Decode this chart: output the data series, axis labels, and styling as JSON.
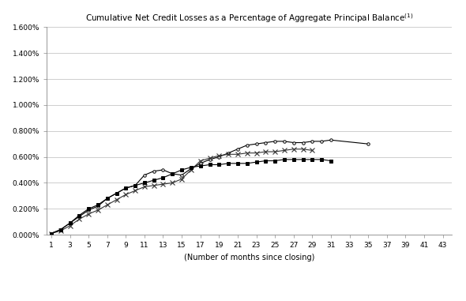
{
  "title_text": "Cumulative Net Credit Losses as a Percentage of Aggregate Principal Balance(1)",
  "xlabel": "(Number of months since closing)",
  "xlim": [
    0.5,
    44
  ],
  "ylim": [
    0.0,
    0.016
  ],
  "xticks": [
    1,
    3,
    5,
    7,
    9,
    11,
    13,
    15,
    17,
    19,
    21,
    23,
    25,
    27,
    29,
    31,
    33,
    35,
    37,
    39,
    41,
    43
  ],
  "yticks": [
    0.0,
    0.002,
    0.004,
    0.006,
    0.008,
    0.01,
    0.012,
    0.014,
    0.016
  ],
  "ytick_labels": [
    "0.000%",
    "0.200%",
    "0.400%",
    "0.600%",
    "0.800%",
    "1.000%",
    "1.200%",
    "1.400%",
    "1.600%"
  ],
  "series_A": {
    "x": [
      1,
      2,
      3,
      4,
      5,
      6,
      7,
      8,
      9,
      10,
      11,
      12,
      13,
      14,
      15,
      16,
      17,
      18,
      19,
      20,
      21,
      22,
      23,
      24,
      25,
      26,
      27,
      28,
      29,
      30,
      31,
      35
    ],
    "y": [
      0.0001,
      0.0004,
      0.0009,
      0.0014,
      0.0019,
      0.0022,
      0.0028,
      0.0032,
      0.0036,
      0.0038,
      0.0046,
      0.0049,
      0.005,
      0.0047,
      0.0046,
      0.0051,
      0.0055,
      0.0058,
      0.006,
      0.0063,
      0.0066,
      0.0069,
      0.007,
      0.0071,
      0.0072,
      0.0072,
      0.0071,
      0.0071,
      0.0072,
      0.0072,
      0.0073,
      0.007
    ],
    "color": "#000000",
    "marker": "o",
    "markersize": 2.5,
    "linewidth": 0.8
  },
  "series_B": {
    "x": [
      1,
      2,
      3,
      4,
      5,
      6,
      7,
      8,
      9,
      10,
      11,
      12,
      13,
      14,
      15,
      16,
      17,
      18,
      19,
      20,
      21,
      22,
      23,
      24,
      25,
      26,
      27,
      28,
      29
    ],
    "y": [
      0.0001,
      0.0003,
      0.0007,
      0.0012,
      0.0016,
      0.0019,
      0.0023,
      0.0027,
      0.0031,
      0.0034,
      0.0037,
      0.0038,
      0.0039,
      0.004,
      0.0043,
      0.005,
      0.0057,
      0.0059,
      0.0061,
      0.0062,
      0.0062,
      0.0063,
      0.0063,
      0.0064,
      0.0064,
      0.0065,
      0.0066,
      0.0066,
      0.0065
    ],
    "color": "#555555",
    "marker": "x",
    "markersize": 4,
    "linewidth": 0.8
  },
  "series_C": {
    "x": [
      1,
      2,
      3,
      4,
      5,
      6,
      7,
      8,
      9,
      10,
      11,
      12,
      13,
      14,
      15,
      16,
      17,
      18,
      19,
      20,
      21,
      22,
      23,
      24,
      25,
      26,
      27,
      28,
      29,
      30,
      31
    ],
    "y": [
      0.0001,
      0.0004,
      0.0009,
      0.0015,
      0.002,
      0.0023,
      0.0028,
      0.0032,
      0.0036,
      0.0038,
      0.004,
      0.0042,
      0.0044,
      0.0047,
      0.005,
      0.0052,
      0.0053,
      0.0054,
      0.0054,
      0.0055,
      0.0055,
      0.0055,
      0.0056,
      0.0057,
      0.0057,
      0.0058,
      0.0058,
      0.0058,
      0.0058,
      0.0058,
      0.0057
    ],
    "color": "#000000",
    "marker": "s",
    "markersize": 3.5,
    "linewidth": 0.8
  },
  "background_color": "#ffffff",
  "grid_color": "#bbbbbb",
  "fig_width": 5.9,
  "fig_height": 3.81,
  "dpi": 100
}
